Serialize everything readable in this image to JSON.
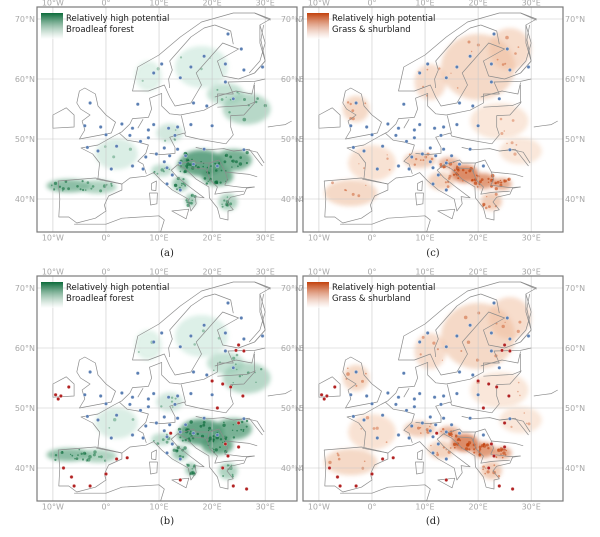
{
  "figure": {
    "panels": [
      {
        "id": "a",
        "caption": "(a)",
        "legend_title": "Relatively high potential",
        "legend_sub": "Broadleaf forest",
        "palette": "green",
        "red_points": false
      },
      {
        "id": "c",
        "caption": "(c)",
        "legend_title": "Relatively high potential",
        "legend_sub": "Grass & shurbland",
        "palette": "orange",
        "red_points": false
      },
      {
        "id": "b",
        "caption": "(b)",
        "legend_title": "Relatively high potential",
        "legend_sub": "Broadleaf forest",
        "palette": "green",
        "red_points": true
      },
      {
        "id": "d",
        "caption": "(d)",
        "legend_title": "Relatively high potential",
        "legend_sub": "Grass & shurbland",
        "palette": "orange",
        "red_points": true
      }
    ],
    "x_ticks": [
      "10°W",
      "0°",
      "10°E",
      "20°E",
      "30°E"
    ],
    "y_ticks": [
      "70°N",
      "60°N",
      "50°N",
      "40°N"
    ],
    "colors": {
      "green_dark": "#0b6b3a",
      "green_light": "#bfe8d6",
      "orange_dark": "#c2410c",
      "orange_light": "#fde0c2",
      "blue_points": "#5b7fb3",
      "red_points": "#b22222",
      "border": "#8c8c8c",
      "grid": "#c8c8c8",
      "frame": "#7a7a7a"
    }
  }
}
